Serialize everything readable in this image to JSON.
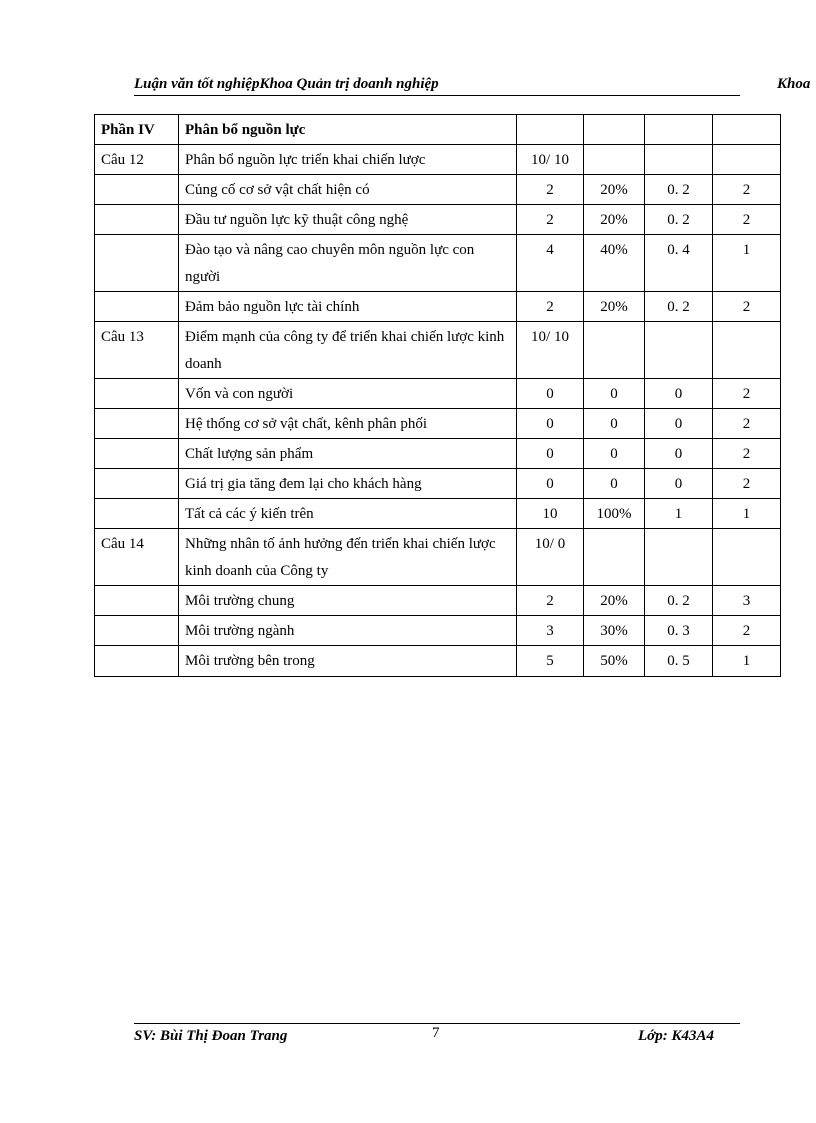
{
  "header": {
    "left": "Luận văn tốt nghiệpKhoa Quản trị doanh nghiệp",
    "right": "Khoa"
  },
  "table": {
    "rows": [
      [
        "Phần IV",
        "Phân bổ nguồn lực",
        "",
        "",
        "",
        ""
      ],
      [
        "Câu 12",
        "Phân bổ nguồn lực triển khai chiến lược",
        "10/ 10",
        "",
        "",
        ""
      ],
      [
        "",
        "Củng cố cơ sở vật chất hiện có",
        "2",
        "20%",
        "0. 2",
        "2"
      ],
      [
        "",
        "Đầu tư nguồn lực kỹ thuật công nghệ",
        "2",
        "20%",
        "0. 2",
        "2"
      ],
      [
        "",
        "Đào tạo và nâng cao chuyên môn nguồn lực con người",
        "4",
        "40%",
        "0. 4",
        "1"
      ],
      [
        "",
        "Đảm bảo nguồn lực tài chính",
        "2",
        "20%",
        "0. 2",
        "2"
      ],
      [
        "Câu 13",
        "Điểm mạnh của công ty để triển khai chiến lược kinh doanh",
        "10/ 10",
        "",
        "",
        ""
      ],
      [
        "",
        "Vốn và con người",
        "0",
        "0",
        "0",
        "2"
      ],
      [
        "",
        "Hệ thống cơ sở vật chất, kênh phân phối",
        "0",
        "0",
        "0",
        "2"
      ],
      [
        "",
        "Chất lượng sản phẩm",
        "0",
        "0",
        "0",
        "2"
      ],
      [
        "",
        "Giá trị gia tăng đem lại cho khách hàng",
        "0",
        "0",
        "0",
        "2"
      ],
      [
        "",
        "Tất cả các ý kiến trên",
        "10",
        "100%",
        "1",
        "1"
      ],
      [
        "Câu 14",
        "Những nhân tố ảnh hưởng đến triển khai chiến lược kinh doanh của Công ty",
        "10/ 0",
        "",
        "",
        ""
      ],
      [
        "",
        "Môi trường chung",
        "2",
        "20%",
        "0. 2",
        "3"
      ],
      [
        "",
        "Môi trường ngành",
        "3",
        "30%",
        "0. 3",
        "2"
      ],
      [
        "",
        "Môi trường bên trong",
        "5",
        "50%",
        "0. 5",
        "1"
      ]
    ]
  },
  "footer": {
    "left": "SV: Bùi Thị Đoan Trang",
    "page": "7",
    "right": "Lớp: K43A4"
  }
}
